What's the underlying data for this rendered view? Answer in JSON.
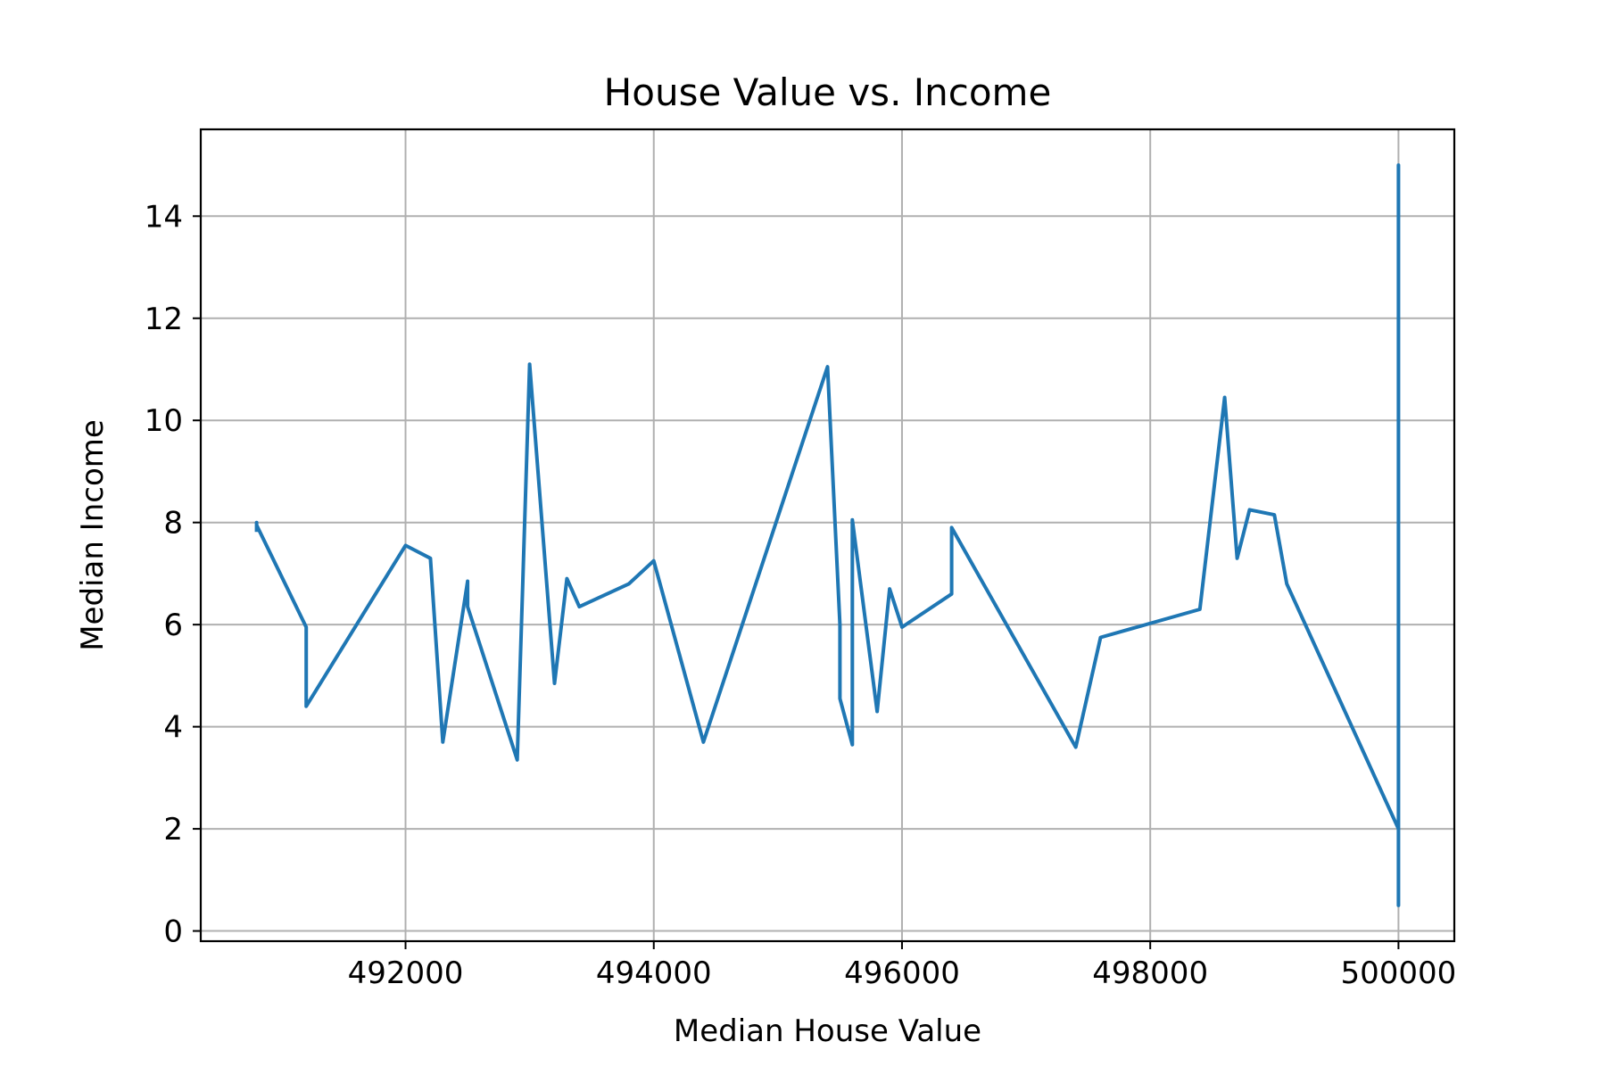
{
  "chart_data": {
    "type": "line",
    "title": "House Value vs. Income",
    "xlabel": "Median House Value",
    "ylabel": "Median Income",
    "xlim": [
      490350,
      500450
    ],
    "ylim": [
      -0.2,
      15.7
    ],
    "x_ticks": [
      492000,
      494000,
      496000,
      498000,
      500000
    ],
    "y_ticks": [
      0,
      2,
      4,
      6,
      8,
      10,
      12,
      14
    ],
    "grid": true,
    "colors": {
      "line": "#1f77b4",
      "grid": "#b0b0b0",
      "axes": "#000000"
    },
    "series": [
      {
        "x": [
          490800,
          490800,
          490800,
          491200,
          491200,
          492000,
          492200,
          492300,
          492500,
          492500,
          492500,
          492900,
          493000,
          493200,
          493300,
          493400,
          493800,
          494000,
          494400,
          495400,
          495500,
          495500,
          495600,
          495600,
          495600,
          495800,
          495900,
          496000,
          496400,
          496400,
          497400,
          497600,
          498400,
          498600,
          498700,
          498800,
          499000,
          499100,
          500000,
          500000,
          500000,
          500000,
          500000,
          500000,
          500000
        ],
        "y": [
          7.85,
          8.0,
          7.95,
          5.95,
          4.4,
          7.55,
          7.3,
          3.7,
          6.85,
          6.5,
          6.35,
          3.35,
          11.1,
          4.85,
          6.9,
          6.35,
          6.8,
          7.25,
          3.7,
          11.05,
          6.0,
          4.55,
          3.65,
          6.0,
          8.05,
          4.3,
          6.7,
          5.95,
          6.6,
          7.9,
          3.6,
          5.75,
          6.3,
          10.45,
          7.3,
          8.25,
          8.15,
          6.8,
          2.0,
          0.5,
          10.0,
          15.0,
          1.2,
          14.2,
          0.6
        ]
      }
    ]
  }
}
